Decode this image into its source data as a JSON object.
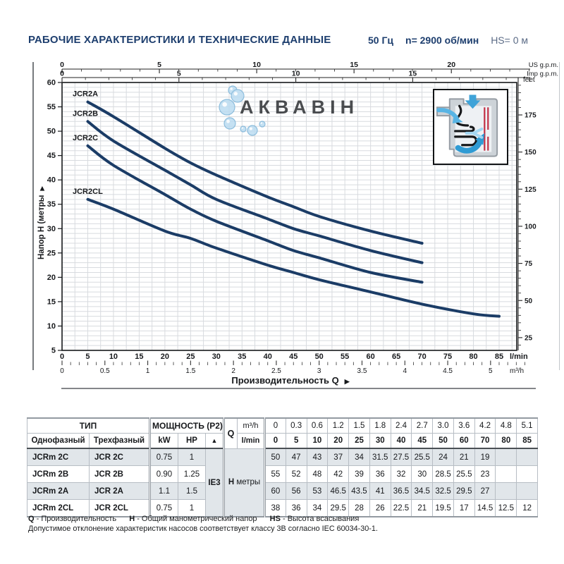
{
  "header": {
    "title": "РАБОЧИЕ ХАРАКТЕРИСТИКИ И ТЕХНИЧЕСКИЕ ДАННЫЕ",
    "frequency": "50 Гц",
    "speed": "n= 2900 об/мин",
    "suction_head": "HS= 0 м"
  },
  "chart_data": {
    "type": "line",
    "xlabel": "Производительность Q",
    "xlabel_arrow": "▶",
    "grid": true,
    "watermark": "АКВАВІН",
    "x_axes": {
      "lmin": {
        "label": "l/min",
        "min": 0,
        "max": 88,
        "ticks": [
          0,
          5,
          10,
          15,
          20,
          25,
          30,
          35,
          40,
          45,
          50,
          55,
          60,
          65,
          70,
          75,
          80,
          85
        ]
      },
      "m3h": {
        "label": "m³/h",
        "ticks": [
          0,
          0.5,
          1,
          1.5,
          2,
          2.5,
          3,
          3.5,
          4,
          4.5,
          5
        ]
      },
      "us_gpm": {
        "label": "US g.p.m.",
        "ticks": [
          0,
          5,
          10,
          15,
          20
        ]
      },
      "imp_gpm": {
        "label": "Imp g.p.m.",
        "ticks": [
          0,
          5,
          10,
          15
        ]
      }
    },
    "y_axes": {
      "meters": {
        "label": "Напор H (метры",
        "arrow": "▶",
        "min": 5,
        "max": 60,
        "ticks": [
          5,
          10,
          15,
          20,
          25,
          30,
          35,
          40,
          45,
          50,
          55,
          60
        ]
      },
      "feet": {
        "label": "feet",
        "ticks": [
          25,
          50,
          75,
          100,
          125,
          150,
          175
        ]
      }
    },
    "series": [
      {
        "name": "JCR2A",
        "q_lmin": [
          5,
          10,
          20,
          25,
          30,
          40,
          45,
          50,
          60,
          70
        ],
        "h_m": [
          56,
          53,
          46.5,
          43.5,
          41,
          36.5,
          34.5,
          32.5,
          29.5,
          27
        ]
      },
      {
        "name": "JCR2B",
        "q_lmin": [
          5,
          10,
          20,
          25,
          30,
          40,
          45,
          50,
          60,
          70
        ],
        "h_m": [
          52,
          48,
          42,
          39,
          36,
          32,
          30,
          28.5,
          25.5,
          23
        ]
      },
      {
        "name": "JCR2C",
        "q_lmin": [
          5,
          10,
          20,
          25,
          30,
          40,
          45,
          50,
          60,
          70
        ],
        "h_m": [
          47,
          43,
          37,
          34,
          31.5,
          27.5,
          25.5,
          24,
          21,
          19
        ]
      },
      {
        "name": "JCR2CL",
        "q_lmin": [
          5,
          10,
          20,
          25,
          30,
          40,
          45,
          50,
          60,
          70,
          80,
          85
        ],
        "h_m": [
          36,
          34,
          29.5,
          28,
          26,
          22.5,
          21,
          19.5,
          17,
          14.5,
          12.5,
          12
        ]
      }
    ]
  },
  "table": {
    "header": {
      "type_label": "ТИП",
      "single_phase": "Однофазный",
      "three_phase": "Трехфазный",
      "power_label": "МОЩНОСТЬ (P2)",
      "kw": "kW",
      "hp": "HP",
      "triangle": "▲",
      "q_label": "Q",
      "m3h_label": "m³/h",
      "lmin_label": "l/min",
      "m3h_values": [
        "0",
        "0.3",
        "0.6",
        "1.2",
        "1.5",
        "1.8",
        "2.4",
        "2.7",
        "3.0",
        "3.6",
        "4.2",
        "4.8",
        "5.1"
      ],
      "lmin_values": [
        "0",
        "5",
        "10",
        "20",
        "25",
        "30",
        "40",
        "45",
        "50",
        "60",
        "70",
        "80",
        "85"
      ]
    },
    "ie3_label": "IE3",
    "h_label": "H",
    "h_unit": "метры",
    "rows": [
      {
        "single": "JCRm 2C",
        "three": "JCR 2C",
        "kw": "0.75",
        "hp": "1",
        "shaded": true,
        "values": [
          "50",
          "47",
          "43",
          "37",
          "34",
          "31.5",
          "27.5",
          "25.5",
          "24",
          "21",
          "19",
          "",
          ""
        ]
      },
      {
        "single": "JCRm 2B",
        "three": "JCR 2B",
        "kw": "0.90",
        "hp": "1.25",
        "shaded": false,
        "values": [
          "55",
          "52",
          "48",
          "42",
          "39",
          "36",
          "32",
          "30",
          "28.5",
          "25.5",
          "23",
          "",
          ""
        ]
      },
      {
        "single": "JCRm 2A",
        "three": "JCR 2A",
        "kw": "1.1",
        "hp": "1.5",
        "shaded": true,
        "values": [
          "60",
          "56",
          "53",
          "46.5",
          "43.5",
          "41",
          "36.5",
          "34.5",
          "32.5",
          "29.5",
          "27",
          "",
          ""
        ]
      },
      {
        "single": "JCRm 2CL",
        "three": "JCR 2CL",
        "kw": "0.75",
        "hp": "1",
        "shaded": false,
        "values": [
          "38",
          "36",
          "34",
          "29.5",
          "28",
          "26",
          "22.5",
          "21",
          "19.5",
          "17",
          "14.5",
          "12.5",
          "12"
        ]
      }
    ]
  },
  "footer": {
    "legend": [
      {
        "key": "Q",
        "desc": "- Производительность"
      },
      {
        "key": "H",
        "desc": "- Общий манометрический напор"
      },
      {
        "key": "HS",
        "desc": "- Высота всасывания"
      }
    ],
    "note": "Допустимое отклонение характеристик насосов соответствует классу 3B согласно IEC 60034-30-1."
  },
  "colors": {
    "title": "#1d3e6e",
    "curve": "#1b3c66",
    "curve_label": "#16305c",
    "grid": "#d8dbdf",
    "row_shade": "#e1e6ea",
    "watermark_text": "#adb2b9",
    "bubble": "#bcdcf1"
  }
}
